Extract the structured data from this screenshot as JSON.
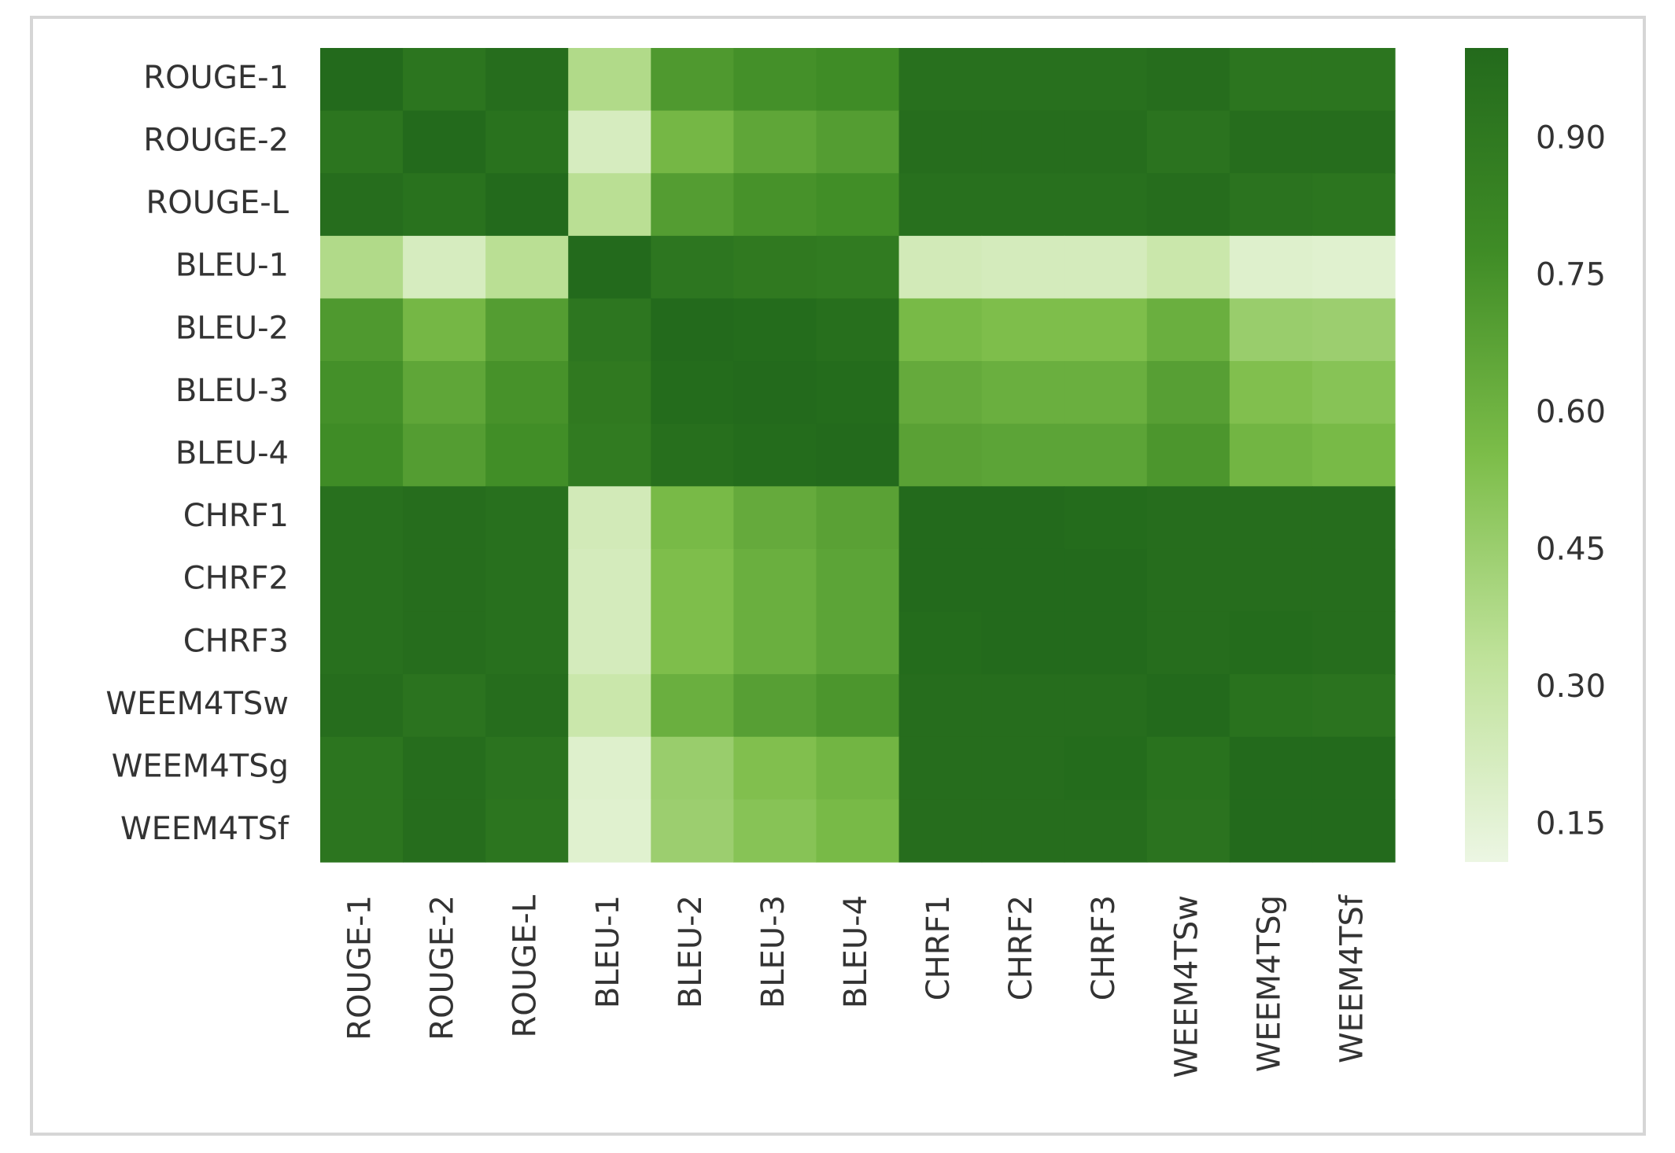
{
  "chart_data": {
    "type": "heatmap",
    "x_categories": [
      "ROUGE-1",
      "ROUGE-2",
      "ROUGE-L",
      "BLEU-1",
      "BLEU-2",
      "BLEU-3",
      "BLEU-4",
      "CHRF1",
      "CHRF2",
      "CHRF3",
      "WEEM4TSw",
      "WEEM4TSg",
      "WEEM4TSf"
    ],
    "y_categories": [
      "ROUGE-1",
      "ROUGE-2",
      "ROUGE-L",
      "BLEU-1",
      "BLEU-2",
      "BLEU-3",
      "BLEU-4",
      "CHRF1",
      "CHRF2",
      "CHRF3",
      "WEEM4TSw",
      "WEEM4TSg",
      "WEEM4TSf"
    ],
    "values": [
      [
        1.0,
        0.93,
        0.98,
        0.38,
        0.72,
        0.76,
        0.78,
        0.96,
        0.96,
        0.96,
        0.98,
        0.93,
        0.93
      ],
      [
        0.93,
        1.0,
        0.95,
        0.22,
        0.58,
        0.66,
        0.7,
        0.98,
        0.98,
        0.98,
        0.94,
        0.98,
        0.98
      ],
      [
        0.98,
        0.95,
        1.0,
        0.35,
        0.7,
        0.75,
        0.77,
        0.96,
        0.96,
        0.96,
        0.98,
        0.94,
        0.93
      ],
      [
        0.38,
        0.22,
        0.35,
        1.0,
        0.92,
        0.9,
        0.89,
        0.24,
        0.23,
        0.23,
        0.28,
        0.18,
        0.17
      ],
      [
        0.72,
        0.58,
        0.7,
        0.92,
        1.0,
        0.99,
        0.97,
        0.57,
        0.55,
        0.55,
        0.62,
        0.46,
        0.45
      ],
      [
        0.76,
        0.66,
        0.75,
        0.9,
        0.99,
        1.0,
        0.99,
        0.64,
        0.62,
        0.62,
        0.69,
        0.54,
        0.52
      ],
      [
        0.78,
        0.7,
        0.77,
        0.89,
        0.97,
        0.99,
        1.0,
        0.68,
        0.67,
        0.67,
        0.73,
        0.59,
        0.57
      ],
      [
        0.96,
        0.98,
        0.96,
        0.24,
        0.57,
        0.64,
        0.68,
        1.0,
        1.0,
        0.99,
        0.98,
        0.98,
        0.98
      ],
      [
        0.96,
        0.98,
        0.96,
        0.23,
        0.55,
        0.62,
        0.67,
        1.0,
        1.0,
        1.0,
        0.98,
        0.98,
        0.98
      ],
      [
        0.96,
        0.98,
        0.96,
        0.23,
        0.55,
        0.62,
        0.67,
        0.99,
        1.0,
        1.0,
        0.98,
        0.99,
        0.98
      ],
      [
        0.98,
        0.94,
        0.98,
        0.28,
        0.62,
        0.69,
        0.73,
        0.98,
        0.98,
        0.98,
        1.0,
        0.95,
        0.94
      ],
      [
        0.93,
        0.98,
        0.94,
        0.18,
        0.46,
        0.54,
        0.59,
        0.98,
        0.98,
        0.99,
        0.95,
        1.0,
        1.0
      ],
      [
        0.93,
        0.98,
        0.93,
        0.17,
        0.45,
        0.52,
        0.57,
        0.98,
        0.98,
        0.98,
        0.94,
        1.0,
        1.0
      ]
    ],
    "clim": [
      0.11,
      1.0
    ],
    "cticks": [
      0.15,
      {
        "value": 0.3,
        "label": "0.30"
      },
      0.45,
      {
        "value": 0.6,
        "label": "0.60"
      },
      0.75,
      {
        "value": 0.9,
        "label": "0.90"
      }
    ],
    "colorscale": [
      "#ecf6e3",
      "#bfe29a",
      "#7cbd49",
      "#3f8c26",
      "#236a1c"
    ]
  }
}
